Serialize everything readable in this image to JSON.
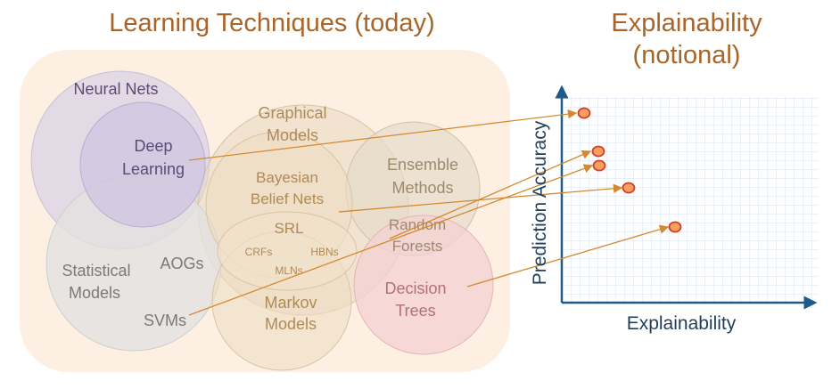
{
  "titles": {
    "left": "Learning Techniques (today)",
    "right_line1": "Explainability",
    "right_line2": "(notional)"
  },
  "techniques": {
    "neural_nets": "Neural Nets",
    "deep_learning_1": "Deep",
    "deep_learning_2": "Learning",
    "graphical_models_1": "Graphical",
    "graphical_models_2": "Models",
    "bayesian_1": "Bayesian",
    "bayesian_2": "Belief Nets",
    "srl": "SRL",
    "crfs": "CRFs",
    "hbns": "HBNs",
    "mlns": "MLNs",
    "markov_1": "Markov",
    "markov_2": "Models",
    "ensemble_1": "Ensemble",
    "ensemble_2": "Methods",
    "random_forests_1": "Random",
    "random_forests_2": "Forests",
    "statistical_1": "Statistical",
    "statistical_2": "Models",
    "aogs": "AOGs",
    "svms": "SVMs",
    "decision_trees_1": "Decision",
    "decision_trees_2": "Trees"
  },
  "axes": {
    "x_label": "Explainability",
    "y_label": "Prediction Accuracy"
  },
  "colors": {
    "title": "#a8652a",
    "arrow": "#d4892e",
    "marker_fill": "#f5a060",
    "marker_stroke": "#d2402a",
    "axis": "#1f5a8a"
  }
}
